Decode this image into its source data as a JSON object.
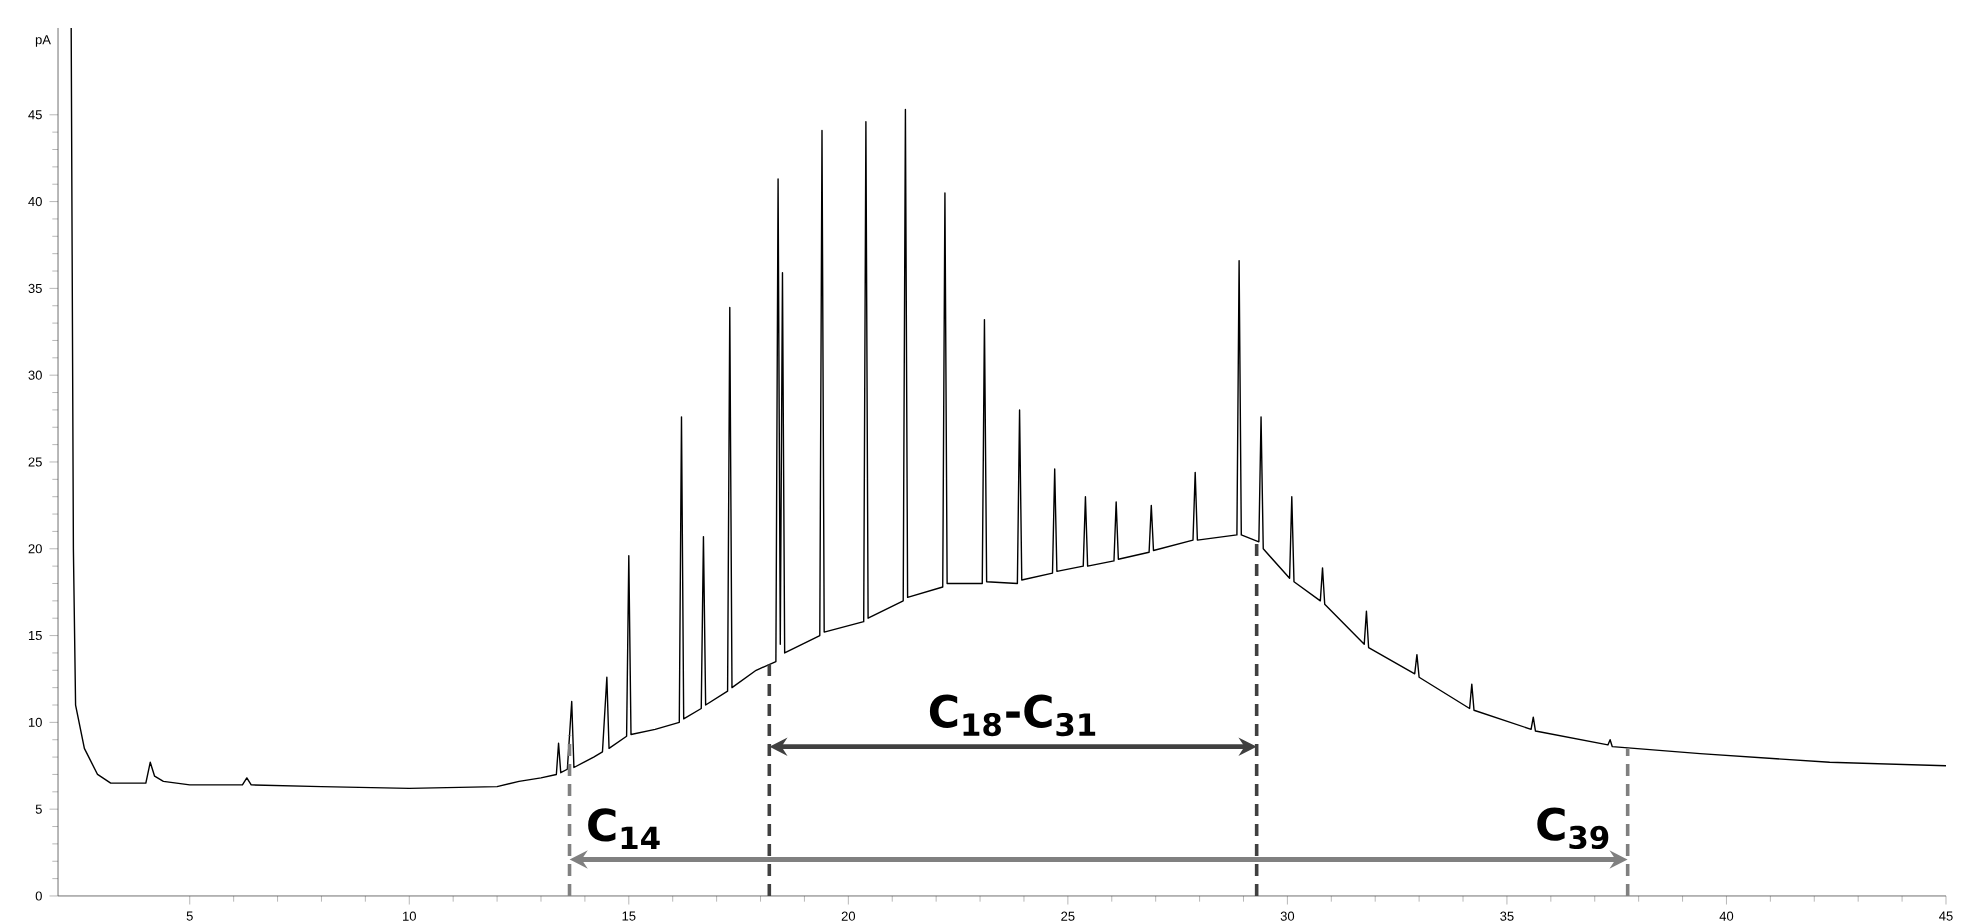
{
  "chart_data": {
    "type": "line",
    "ylabel": "pA",
    "color": "#000000",
    "xlim": [
      2,
      45
    ],
    "ylim": [
      0,
      50
    ],
    "xticks": [
      5,
      10,
      15,
      20,
      25,
      30,
      35,
      40,
      45
    ],
    "yticks": [
      0,
      5,
      10,
      15,
      20,
      25,
      30,
      35,
      40,
      45
    ],
    "x": [
      2.3,
      2.35,
      2.4,
      2.6,
      2.9,
      3.2,
      4.0,
      4.1,
      4.2,
      4.4,
      5,
      6.2,
      6.3,
      6.4,
      8,
      10,
      12,
      12.5,
      13,
      13.35,
      13.4,
      13.45,
      13.6,
      13.7,
      13.75,
      14.2,
      14.4,
      14.5,
      14.55,
      14.95,
      15.0,
      15.05,
      15.6,
      16.15,
      16.2,
      16.25,
      16.65,
      16.7,
      16.75,
      17.25,
      17.3,
      17.35,
      17.9,
      18.35,
      18.4,
      18.45,
      18.5,
      18.55,
      19.35,
      19.4,
      19.45,
      20.35,
      20.4,
      20.45,
      21.25,
      21.3,
      21.35,
      22.15,
      22.2,
      22.25,
      23.05,
      23.1,
      23.15,
      23.85,
      23.9,
      23.95,
      24.65,
      24.7,
      24.75,
      25.35,
      25.4,
      25.45,
      26.05,
      26.1,
      26.15,
      26.85,
      26.9,
      26.95,
      27.85,
      27.9,
      27.95,
      28.85,
      28.9,
      28.95,
      29.35,
      29.4,
      29.45,
      30.05,
      30.1,
      30.15,
      30.75,
      30.8,
      30.85,
      31.75,
      31.8,
      31.85,
      32.9,
      32.95,
      33.0,
      34.15,
      34.2,
      34.25,
      35.55,
      35.6,
      35.65,
      37.3,
      37.35,
      37.4,
      39.4,
      42.35,
      45
    ],
    "values": [
      50,
      20,
      11,
      8.5,
      7,
      6.5,
      6.5,
      7.7,
      6.9,
      6.6,
      6.4,
      6.4,
      6.8,
      6.4,
      6.3,
      6.2,
      6.3,
      6.6,
      6.8,
      7.0,
      8.8,
      7.1,
      7.3,
      11.2,
      7.4,
      8.0,
      8.3,
      12.6,
      8.5,
      9.2,
      19.6,
      9.3,
      9.6,
      10.0,
      27.6,
      10.2,
      10.8,
      20.7,
      11.0,
      11.8,
      33.9,
      12.0,
      13.0,
      13.5,
      41.3,
      14.5,
      35.9,
      14.0,
      15.0,
      44.1,
      15.2,
      15.8,
      44.6,
      16.0,
      17.0,
      45.3,
      17.2,
      17.8,
      40.5,
      18.0,
      18.0,
      33.2,
      18.1,
      18.0,
      28.0,
      18.2,
      18.6,
      24.6,
      18.7,
      19.0,
      23.0,
      19.0,
      19.3,
      22.7,
      19.4,
      19.8,
      22.5,
      19.9,
      20.5,
      24.4,
      20.5,
      20.8,
      36.6,
      20.8,
      20.4,
      27.6,
      20.0,
      18.3,
      23.0,
      18.1,
      17.0,
      18.9,
      16.8,
      14.5,
      16.4,
      14.3,
      12.8,
      13.9,
      12.6,
      10.8,
      12.2,
      10.7,
      9.6,
      10.3,
      9.5,
      8.7,
      9.0,
      8.6,
      8.2,
      7.7,
      7.5
    ],
    "ref_lines": [
      {
        "axis": "x",
        "value": 13.65,
        "color": "#808080",
        "line_style": "dashed"
      },
      {
        "axis": "x",
        "value": 18.2,
        "color": "#404040",
        "line_style": "dashed"
      },
      {
        "axis": "x",
        "value": 29.3,
        "color": "#404040",
        "line_style": "dashed"
      },
      {
        "axis": "x",
        "value": 37.75,
        "color": "#808080",
        "line_style": "dashed"
      }
    ],
    "annotations": [
      "C$_{14}$",
      "C$_{18}$-C$_{31}$",
      "C$_{39}$"
    ]
  }
}
